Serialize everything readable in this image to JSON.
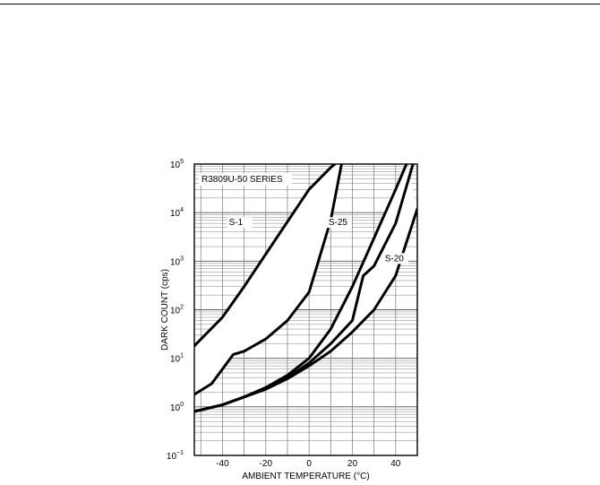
{
  "chart_data": {
    "type": "line",
    "title": "R3809U-50 SERIES",
    "xlabel": "AMBIENT TEMPERATURE (°C)",
    "ylabel": "DARK COUNT (cps)",
    "xlim": [
      -53,
      50
    ],
    "ylim": [
      0.1,
      100000
    ],
    "yscale": "log",
    "grid": true,
    "x_ticks": [
      "-40",
      "-20",
      "0",
      "20",
      "40"
    ],
    "x_tick_values": [
      -40,
      -20,
      0,
      20,
      40
    ],
    "y_ticks": [
      {
        "base": "10",
        "exp": "−1",
        "value": 0.1
      },
      {
        "base": "10",
        "exp": "0",
        "value": 1
      },
      {
        "base": "10",
        "exp": "1",
        "value": 10
      },
      {
        "base": "10",
        "exp": "2",
        "value": 100
      },
      {
        "base": "10",
        "exp": "3",
        "value": 1000
      },
      {
        "base": "10",
        "exp": "4",
        "value": 10000
      },
      {
        "base": "10",
        "exp": "5",
        "value": 100000
      }
    ],
    "band_labels": [
      "S-1",
      "S-25",
      "S-20"
    ],
    "series": [
      {
        "band": "S-1",
        "bound": "upper",
        "x": [
          -53,
          -40,
          -30,
          -20,
          -10,
          0,
          10,
          12
        ],
        "y": [
          18,
          70,
          300,
          1400,
          6500,
          30000,
          85000,
          100000
        ]
      },
      {
        "band": "S-1",
        "bound": "lower",
        "x": [
          -53,
          -45,
          -35,
          -30,
          -20,
          -10,
          0,
          10,
          15
        ],
        "y": [
          1.8,
          3,
          12,
          14,
          25,
          60,
          230,
          7000,
          100000
        ]
      },
      {
        "band": "S-25",
        "bound": "upper",
        "x": [
          -53,
          -40,
          -30,
          -20,
          -10,
          0,
          10,
          20,
          30,
          40,
          45
        ],
        "y": [
          0.8,
          1.1,
          1.6,
          2.5,
          4.5,
          10,
          40,
          300,
          3000,
          30000,
          100000
        ]
      },
      {
        "band": "S-25",
        "bound": "lower",
        "x": [
          -53,
          -40,
          -30,
          -20,
          -10,
          0,
          10,
          20,
          25,
          30,
          40,
          48
        ],
        "y": [
          0.8,
          1.1,
          1.6,
          2.4,
          4,
          8,
          20,
          60,
          500,
          800,
          6000,
          100000
        ]
      },
      {
        "band": "S-20",
        "bound": "lower",
        "x": [
          -53,
          -40,
          -30,
          -20,
          -10,
          0,
          10,
          20,
          30,
          40,
          50
        ],
        "y": [
          0.8,
          1.1,
          1.6,
          2.3,
          3.8,
          7,
          14,
          35,
          100,
          500,
          12000
        ]
      }
    ]
  }
}
